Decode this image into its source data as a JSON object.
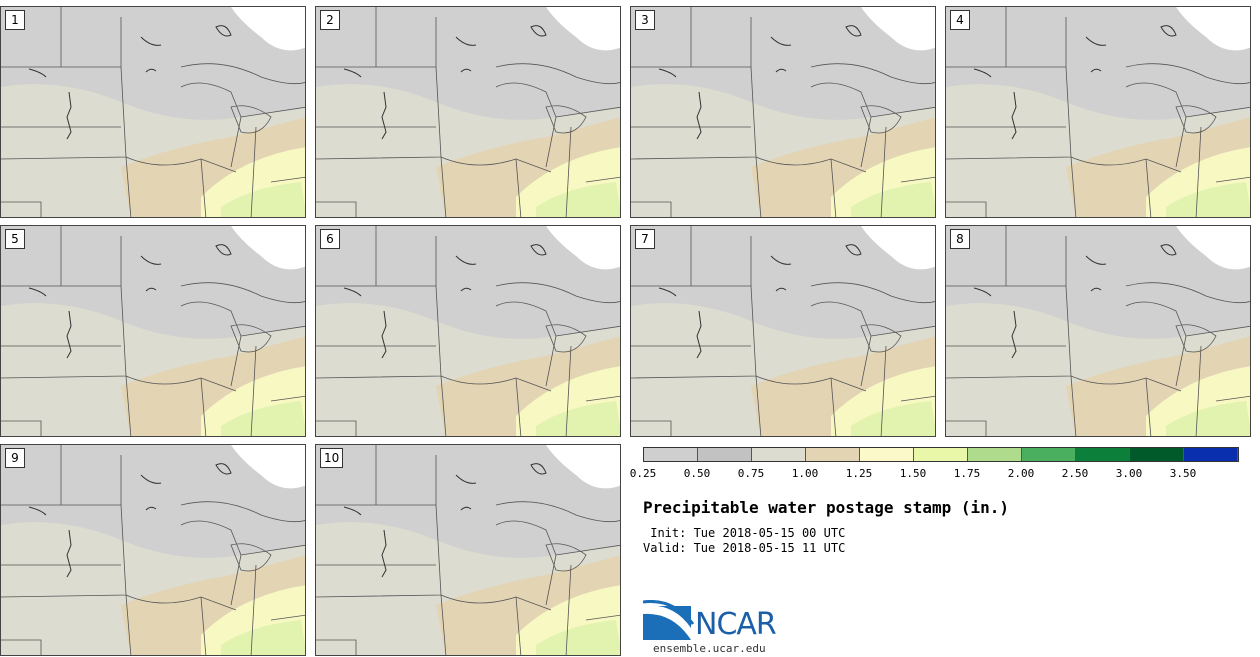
{
  "panels": [
    {
      "label": "1"
    },
    {
      "label": "2"
    },
    {
      "label": "3"
    },
    {
      "label": "4"
    },
    {
      "label": "5"
    },
    {
      "label": "6"
    },
    {
      "label": "7"
    },
    {
      "label": "8"
    },
    {
      "label": "9"
    },
    {
      "label": "10"
    }
  ],
  "colorbar": {
    "colors": [
      "#cfcfcf",
      "#c2c2c2",
      "#dcdcd0",
      "#e3d4b4",
      "#fbf9c9",
      "#e9f8a8",
      "#aedc8c",
      "#4aaf5f",
      "#0c7f3a",
      "#005a2a",
      "#0a2fae"
    ],
    "ticks": [
      "0.25",
      "0.50",
      "0.75",
      "1.00",
      "1.25",
      "1.50",
      "1.75",
      "2.00",
      "2.50",
      "3.00",
      "3.50"
    ]
  },
  "title": "Precipitable water postage stamp (in.)",
  "init": " Init: Tue 2018-05-15 00 UTC",
  "valid": "Valid: Tue 2018-05-15 11 UTC",
  "logo": {
    "text": "NCAR",
    "url": "ensemble.ucar.edu"
  }
}
